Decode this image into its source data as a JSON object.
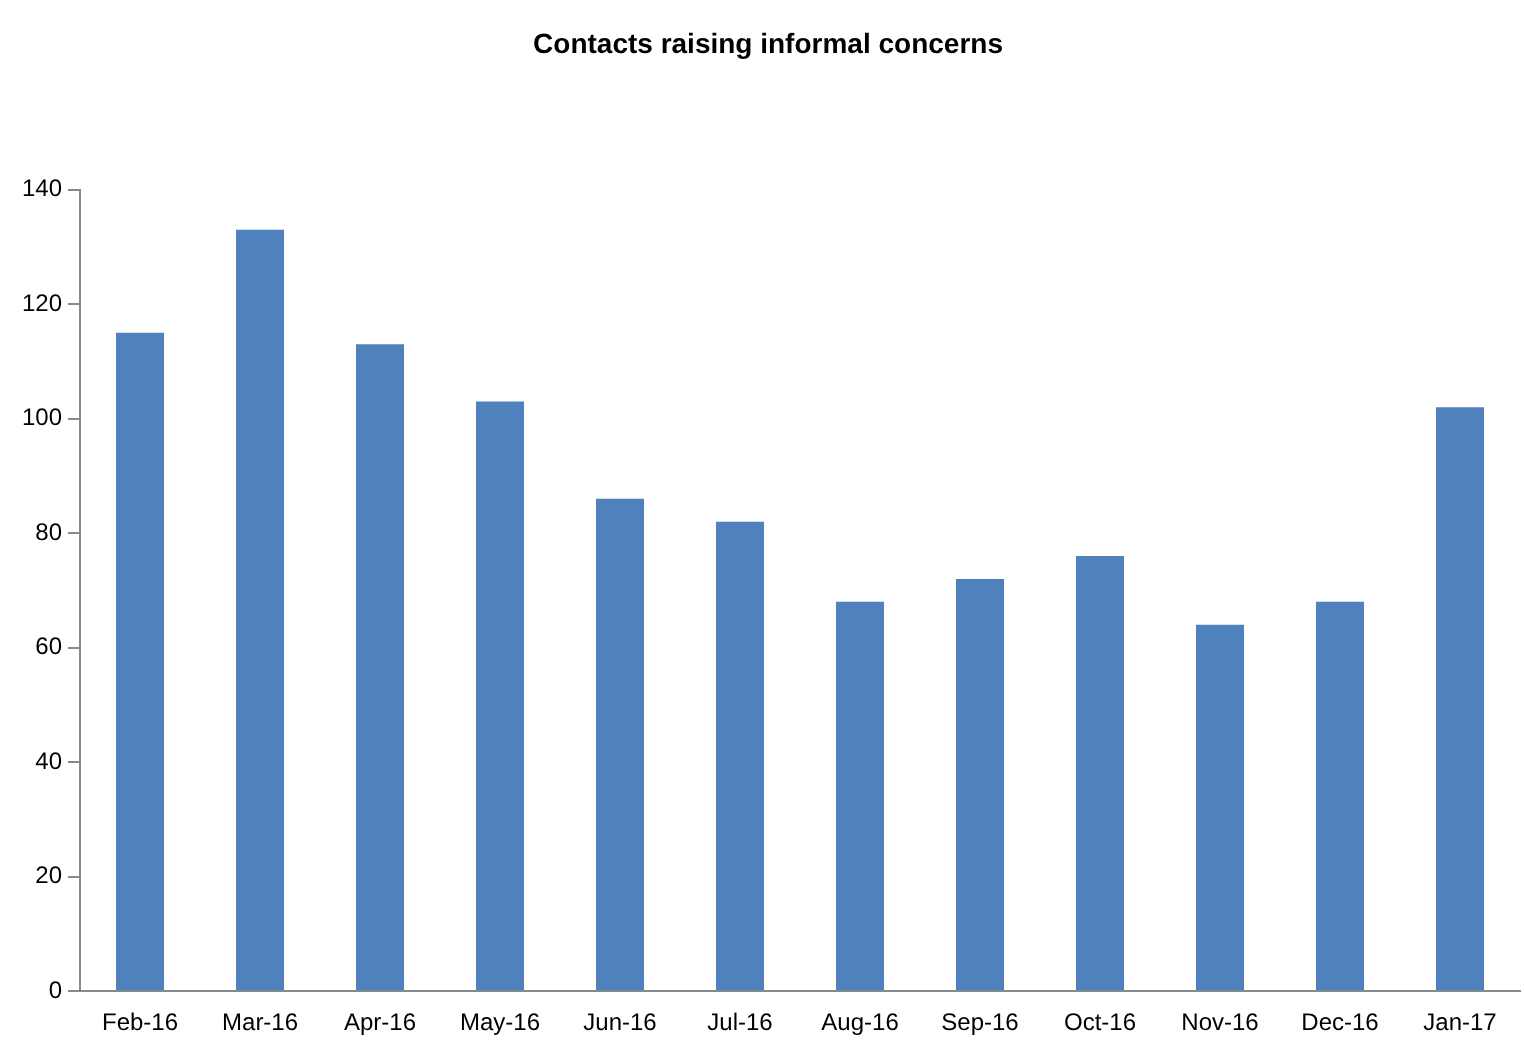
{
  "chart_data": {
    "type": "bar",
    "title": "Contacts raising informal concerns",
    "categories": [
      "Feb-16",
      "Mar-16",
      "Apr-16",
      "May-16",
      "Jun-16",
      "Jul-16",
      "Aug-16",
      "Sep-16",
      "Oct-16",
      "Nov-16",
      "Dec-16",
      "Jan-17"
    ],
    "values": [
      115,
      133,
      113,
      103,
      86,
      82,
      68,
      72,
      76,
      64,
      68,
      102
    ],
    "color": "#4f81bd",
    "ylim": [
      0,
      140
    ],
    "yticks": [
      0,
      20,
      40,
      60,
      80,
      100,
      120,
      140
    ],
    "grid": false,
    "legend": false
  }
}
